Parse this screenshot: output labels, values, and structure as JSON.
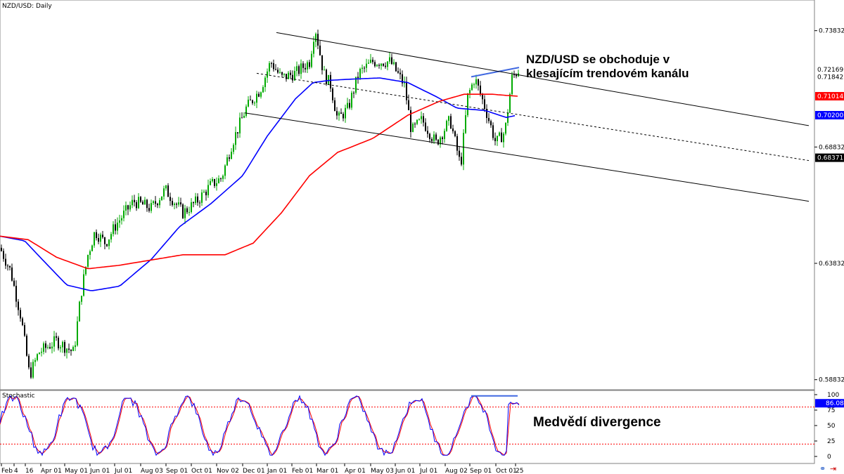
{
  "chart_data": [
    {
      "type": "candlestick",
      "title": "NZD/USD: Daily",
      "price_axis": {
        "ylim": [
          0.584,
          0.7515
        ],
        "ticks": [
          "0.73832",
          "0.68832",
          "0.63832",
          "0.58832"
        ],
        "tick_values": [
          0.73832,
          0.68832,
          0.63832,
          0.58832
        ]
      },
      "time_axis": {
        "labels": [
          "Feb",
          "4",
          "16",
          "Apr 01",
          "May 01",
          "Jun 01",
          "Jul 01",
          "Aug 03",
          "Sep 01",
          "Oct 01",
          "Nov 02",
          "Dec 01",
          "Jan 01",
          "Feb 01",
          "Mar 01",
          "Apr 01",
          "May 03",
          "Jun 01",
          "Jul 01",
          "Aug 02",
          "Sep 01",
          "Oct 01",
          "25"
        ]
      },
      "price_labels": [
        {
          "text": "0.72169",
          "value": 0.72169,
          "bg": "#ffffff",
          "fg": "#000000"
        },
        {
          "text": "0.71842",
          "value": 0.71842,
          "bg": "#ffffff",
          "fg": "#000000"
        },
        {
          "text": "0.71014",
          "value": 0.71014,
          "bg": "#ff0000",
          "fg": "#ffffff"
        },
        {
          "text": "0.70200",
          "value": 0.702,
          "bg": "#0000ff",
          "fg": "#ffffff"
        },
        {
          "text": "0.68371",
          "value": 0.68371,
          "bg": "#000000",
          "fg": "#ffffff"
        }
      ],
      "colors": {
        "bull": "#00aa00",
        "bear": "#000000",
        "ma_fast": "#0000ff",
        "ma_slow": "#ff0000",
        "channel": "#000000",
        "divergence": "#4169e1"
      },
      "series": [
        {
          "name": "MA fast",
          "color": "#0000ff",
          "x": [
            0,
            35,
            60,
            95,
            130,
            170,
            215,
            255,
            300,
            345,
            380,
            420,
            445,
            470,
            500,
            540,
            580,
            620,
            650,
            690,
            720,
            735
          ],
          "y": [
            0.65,
            0.648,
            0.64,
            0.629,
            0.6265,
            0.6285,
            0.64,
            0.654,
            0.664,
            0.676,
            0.693,
            0.709,
            0.716,
            0.717,
            0.7175,
            0.718,
            0.716,
            0.71,
            0.705,
            0.704,
            0.701,
            0.702
          ]
        },
        {
          "name": "MA slow",
          "color": "#ff0000",
          "x": [
            0,
            40,
            80,
            125,
            170,
            220,
            260,
            320,
            360,
            400,
            440,
            480,
            530,
            580,
            625,
            660,
            700,
            720,
            738
          ],
          "y": [
            0.65,
            0.6485,
            0.641,
            0.636,
            0.6375,
            0.64,
            0.642,
            0.642,
            0.647,
            0.66,
            0.676,
            0.686,
            0.692,
            0.702,
            0.708,
            0.711,
            0.711,
            0.7105,
            0.7101
          ]
        }
      ],
      "channel": {
        "upper": [
          {
            "x": 393,
            "y": 0.7375
          },
          {
            "x": 1150,
            "y": 0.6975
          }
        ],
        "middle": [
          {
            "x": 365,
            "y": 0.72
          },
          {
            "x": 1150,
            "y": 0.6825
          }
        ],
        "lower": [
          {
            "x": 348,
            "y": 0.703
          },
          {
            "x": 1150,
            "y": 0.665
          }
        ]
      },
      "divergence_line": [
        {
          "x": 670,
          "y": 0.7185
        },
        {
          "x": 738,
          "y": 0.7225
        }
      ],
      "annotation": {
        "line1": "NZD/USD se obchoduje v",
        "line2": "klesajícím trendovém kanálu"
      }
    },
    {
      "type": "line",
      "title": "Stochastic",
      "ylim": [
        0,
        100
      ],
      "ticks": [
        "100",
        "75",
        "50",
        "25",
        "0"
      ],
      "tick_values": [
        100,
        75,
        50,
        25,
        0
      ],
      "levels": [
        80,
        20
      ],
      "current": {
        "text": "86.08",
        "value": 86.08,
        "bg": "#0000ff",
        "fg": "#ffffff"
      },
      "series": [
        {
          "name": "%K",
          "color": "#0000ff"
        },
        {
          "name": "%D",
          "color": "#ff0000"
        }
      ],
      "divergence_line": [
        {
          "x": 670,
          "y": 98
        },
        {
          "x": 736,
          "y": 98
        }
      ],
      "annotation": "Medvědí divergence"
    }
  ]
}
